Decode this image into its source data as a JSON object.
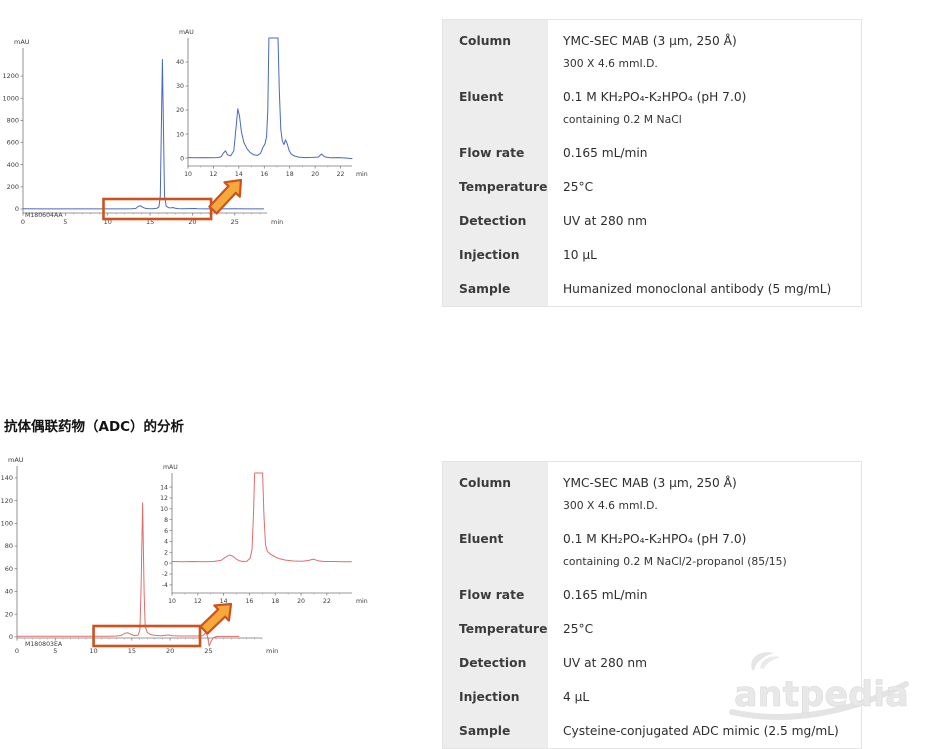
{
  "heading_adc": "抗体偶联药物（ADC）的分析",
  "watermark": "antpedia",
  "tables": [
    {
      "rows": [
        {
          "label": "Column",
          "value": "YMC-SEC MAB (3 μm, 250 Å)",
          "value2": "300 X 4.6 mmI.D."
        },
        {
          "label": "Eluent",
          "value": "0.1 M KH₂PO₄-K₂HPO₄ (pH 7.0)",
          "value2": "containing 0.2 M NaCl"
        },
        {
          "label": "Flow rate",
          "value": "0.165 mL/min"
        },
        {
          "label": "Temperature",
          "value": "25°C"
        },
        {
          "label": "Detection",
          "value": "UV at 280 nm"
        },
        {
          "label": "Injection",
          "value": "10 μL"
        },
        {
          "label": "Sample",
          "value": "Humanized monoclonal antibody (5 mg/mL)"
        }
      ]
    },
    {
      "rows": [
        {
          "label": "Column",
          "value": "YMC-SEC MAB (3 μm, 250 Å)",
          "value2": "300 X 4.6 mmI.D."
        },
        {
          "label": "Eluent",
          "value": "0.1 M KH₂PO₄-K₂HPO₄ (pH 7.0)",
          "value2": "containing 0.2 M NaCl/2-propanol (85/15)"
        },
        {
          "label": "Flow rate",
          "value": "0.165 mL/min"
        },
        {
          "label": "Temperature",
          "value": "25°C"
        },
        {
          "label": "Detection",
          "value": "UV at 280 nm"
        },
        {
          "label": "Injection",
          "value": "4 μL"
        },
        {
          "label": "Sample",
          "value": "Cysteine-conjugated ADC mimic (2.5 mg/mL)"
        }
      ]
    }
  ],
  "chart_data": [
    {
      "id": "mab",
      "type": "line",
      "title": "SEC chromatogram of humanized monoclonal antibody",
      "sample_id": "M180604AA",
      "color": "#4a69bd",
      "highlight_min": [
        9.5,
        22.2
      ],
      "main": {
        "ylabel": "mAU",
        "xlabel": "min",
        "x_ticks": [
          0,
          5,
          10,
          15,
          20,
          25
        ],
        "y_ticks": [
          0,
          200,
          400,
          600,
          800,
          1000,
          1200
        ],
        "x_range": [
          0,
          28.8
        ],
        "y_range": [
          -36,
          1453
        ],
        "points": [
          [
            0,
            2
          ],
          [
            2,
            1
          ],
          [
            4,
            1
          ],
          [
            6,
            1
          ],
          [
            8,
            1
          ],
          [
            10,
            1
          ],
          [
            12,
            1
          ],
          [
            12.8,
            2
          ],
          [
            13.3,
            5
          ],
          [
            13.6,
            24
          ],
          [
            13.85,
            30
          ],
          [
            14.1,
            16
          ],
          [
            14.4,
            7
          ],
          [
            14.8,
            4
          ],
          [
            15.3,
            3
          ],
          [
            15.8,
            6
          ],
          [
            16.05,
            20
          ],
          [
            16.2,
            120
          ],
          [
            16.32,
            700
          ],
          [
            16.45,
            1350
          ],
          [
            16.58,
            700
          ],
          [
            16.7,
            120
          ],
          [
            16.9,
            25
          ],
          [
            17.2,
            12
          ],
          [
            17.5,
            10
          ],
          [
            17.7,
            14
          ],
          [
            17.9,
            8
          ],
          [
            18.3,
            4
          ],
          [
            19,
            2
          ],
          [
            20.2,
            5
          ],
          [
            20.6,
            2
          ],
          [
            21.5,
            1
          ],
          [
            23.2,
            3
          ],
          [
            23.6,
            1
          ],
          [
            25,
            2
          ],
          [
            26.5,
            1
          ],
          [
            28.4,
            1
          ]
        ]
      },
      "inset": {
        "ylabel": "mAU",
        "xlabel": "min",
        "x_ticks": [
          10,
          12,
          14,
          16,
          18,
          20,
          22
        ],
        "y_ticks": [
          0,
          10,
          20,
          30,
          40
        ],
        "x_range": [
          10,
          22.9
        ],
        "y_range": [
          -3.3,
          50
        ],
        "points": [
          [
            10,
            0.2
          ],
          [
            10.6,
            0.1
          ],
          [
            11.2,
            0.2
          ],
          [
            11.8,
            0.1
          ],
          [
            12.3,
            0.2
          ],
          [
            12.6,
            0.5
          ],
          [
            12.8,
            2.2
          ],
          [
            12.95,
            3
          ],
          [
            13.1,
            1.4
          ],
          [
            13.35,
            0.9
          ],
          [
            13.6,
            3
          ],
          [
            13.78,
            13
          ],
          [
            13.92,
            20.5
          ],
          [
            14.05,
            17.5
          ],
          [
            14.2,
            11
          ],
          [
            14.4,
            6.5
          ],
          [
            14.65,
            3.8
          ],
          [
            14.9,
            2.3
          ],
          [
            15.15,
            1.4
          ],
          [
            15.45,
            1.1
          ],
          [
            15.7,
            2
          ],
          [
            15.9,
            4.5
          ],
          [
            16.05,
            5.8
          ],
          [
            16.18,
            9
          ],
          [
            16.28,
            20
          ],
          [
            16.36,
            50
          ],
          [
            17.08,
            50
          ],
          [
            17.18,
            28
          ],
          [
            17.3,
            12
          ],
          [
            17.42,
            7.2
          ],
          [
            17.55,
            5.6
          ],
          [
            17.67,
            7.6
          ],
          [
            17.8,
            6
          ],
          [
            17.95,
            3.2
          ],
          [
            18.1,
            1.8
          ],
          [
            18.35,
            0.9
          ],
          [
            18.7,
            0.4
          ],
          [
            19.2,
            0.2
          ],
          [
            19.8,
            0.3
          ],
          [
            20.25,
            0.4
          ],
          [
            20.5,
            1.7
          ],
          [
            20.75,
            0.5
          ],
          [
            21.2,
            0.1
          ],
          [
            21.9,
            0.2
          ],
          [
            22.5,
            0
          ],
          [
            22.9,
            -0.2
          ]
        ]
      }
    },
    {
      "id": "adc",
      "type": "line",
      "title": "SEC chromatogram of cysteine-conjugated ADC mimic",
      "sample_id": "M180803EA",
      "color": "#e06c6c",
      "highlight_min": [
        10,
        23.9
      ],
      "main": {
        "ylabel": "mAU",
        "xlabel": "min",
        "x_ticks": [
          0,
          5,
          10,
          15,
          20,
          25
        ],
        "y_ticks": [
          0,
          20,
          40,
          60,
          80,
          100,
          120,
          140
        ],
        "x_range": [
          0,
          32
        ],
        "y_range": [
          -1,
          150.5
        ],
        "points": [
          [
            0,
            0.5
          ],
          [
            2,
            0.5
          ],
          [
            4,
            0.5
          ],
          [
            6,
            0.5
          ],
          [
            8,
            0.5
          ],
          [
            10,
            0.5
          ],
          [
            12,
            0.6
          ],
          [
            13,
            0.8
          ],
          [
            13.6,
            1.2
          ],
          [
            14.1,
            3.2
          ],
          [
            14.5,
            3.6
          ],
          [
            14.9,
            2.2
          ],
          [
            15.3,
            1.2
          ],
          [
            15.8,
            1.5
          ],
          [
            16.05,
            6
          ],
          [
            16.2,
            40
          ],
          [
            16.4,
            118
          ],
          [
            16.6,
            40
          ],
          [
            16.75,
            9
          ],
          [
            17,
            4
          ],
          [
            17.4,
            2.2
          ],
          [
            17.9,
            1.4
          ],
          [
            18.8,
            1
          ],
          [
            19.8,
            1.6
          ],
          [
            20.3,
            1
          ],
          [
            21.5,
            0.8
          ],
          [
            23.5,
            0.8
          ],
          [
            24.3,
            1
          ],
          [
            24.7,
            4
          ],
          [
            24.9,
            0
          ],
          [
            25.1,
            -8
          ],
          [
            25.35,
            -4
          ],
          [
            25.6,
            -1
          ],
          [
            26,
            0.3
          ],
          [
            27,
            0.4
          ],
          [
            29,
            0.4
          ]
        ]
      },
      "inset": {
        "ylabel": "mAU",
        "xlabel": "min",
        "x_ticks": [
          10,
          12,
          14,
          16,
          18,
          20,
          22
        ],
        "y_ticks": [
          -4,
          -2,
          0,
          2,
          4,
          6,
          8,
          10,
          12,
          14
        ],
        "x_range": [
          10,
          23.95
        ],
        "y_range": [
          -5.5,
          16.6
        ],
        "points": [
          [
            10,
            0.3
          ],
          [
            10.8,
            0.25
          ],
          [
            11.6,
            0.3
          ],
          [
            12.4,
            0.25
          ],
          [
            13.2,
            0.3
          ],
          [
            13.8,
            0.5
          ],
          [
            14.15,
            1.1
          ],
          [
            14.45,
            1.5
          ],
          [
            14.7,
            1.3
          ],
          [
            14.95,
            0.8
          ],
          [
            15.2,
            0.45
          ],
          [
            15.5,
            0.3
          ],
          [
            15.8,
            0.35
          ],
          [
            16.05,
            0.9
          ],
          [
            16.2,
            2.5
          ],
          [
            16.32,
            9
          ],
          [
            16.4,
            16.6
          ],
          [
            17.02,
            16.6
          ],
          [
            17.12,
            9
          ],
          [
            17.25,
            3.4
          ],
          [
            17.4,
            2.1
          ],
          [
            17.6,
            1.7
          ],
          [
            17.8,
            1.4
          ],
          [
            18.05,
            1.1
          ],
          [
            18.35,
            0.8
          ],
          [
            18.8,
            0.55
          ],
          [
            19.4,
            0.4
          ],
          [
            20.1,
            0.35
          ],
          [
            20.6,
            0.5
          ],
          [
            20.95,
            0.75
          ],
          [
            21.3,
            0.45
          ],
          [
            21.8,
            0.3
          ],
          [
            22.5,
            0.3
          ],
          [
            23.3,
            0.25
          ],
          [
            23.9,
            0.25
          ]
        ]
      }
    }
  ]
}
